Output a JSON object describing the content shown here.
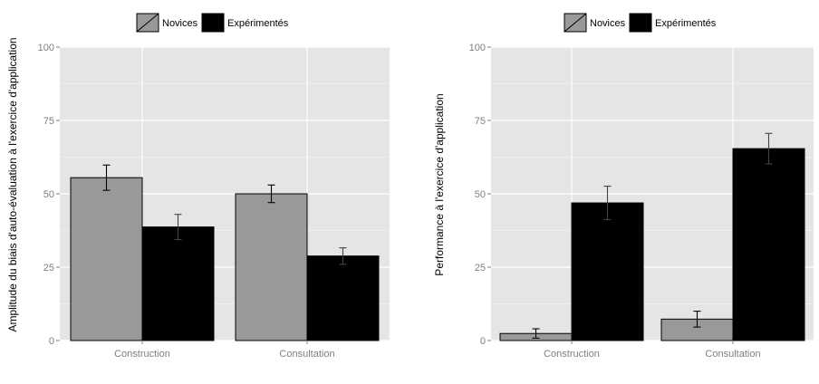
{
  "chart_data": [
    {
      "type": "bar",
      "categories": [
        "Construction",
        "Consultation"
      ],
      "series": [
        {
          "name": "Novices",
          "values": [
            55.5,
            50
          ],
          "error": [
            4.3,
            3
          ]
        },
        {
          "name": "Expérimentés",
          "values": [
            38.7,
            28.8
          ],
          "error": [
            4.3,
            2.8
          ]
        }
      ],
      "ylabel": "Amplitude du biais d'auto-évaluation à l'exercice d'application",
      "xlabel": "",
      "ylim": [
        0,
        100
      ],
      "yticks": [
        "0",
        "25",
        "50",
        "75",
        "100"
      ],
      "legend": "top",
      "grid": true,
      "colors": {
        "Novices": "#999999",
        "Expérimentés": "#000000",
        "panel": "#e5e5e5"
      }
    },
    {
      "type": "bar",
      "categories": [
        "Construction",
        "Consultation"
      ],
      "series": [
        {
          "name": "Novices",
          "values": [
            2.4,
            7.3
          ],
          "error": [
            1.6,
            2.7
          ]
        },
        {
          "name": "Expérimentés",
          "values": [
            46.9,
            65.4
          ],
          "error": [
            5.7,
            5.2
          ]
        }
      ],
      "ylabel": "Performance à l'exercice d'application",
      "xlabel": "",
      "ylim": [
        0,
        100
      ],
      "yticks": [
        "0",
        "25",
        "50",
        "75",
        "100"
      ],
      "legend": "top",
      "grid": true,
      "colors": {
        "Novices": "#999999",
        "Expérimentés": "#000000",
        "panel": "#e5e5e5"
      }
    }
  ]
}
